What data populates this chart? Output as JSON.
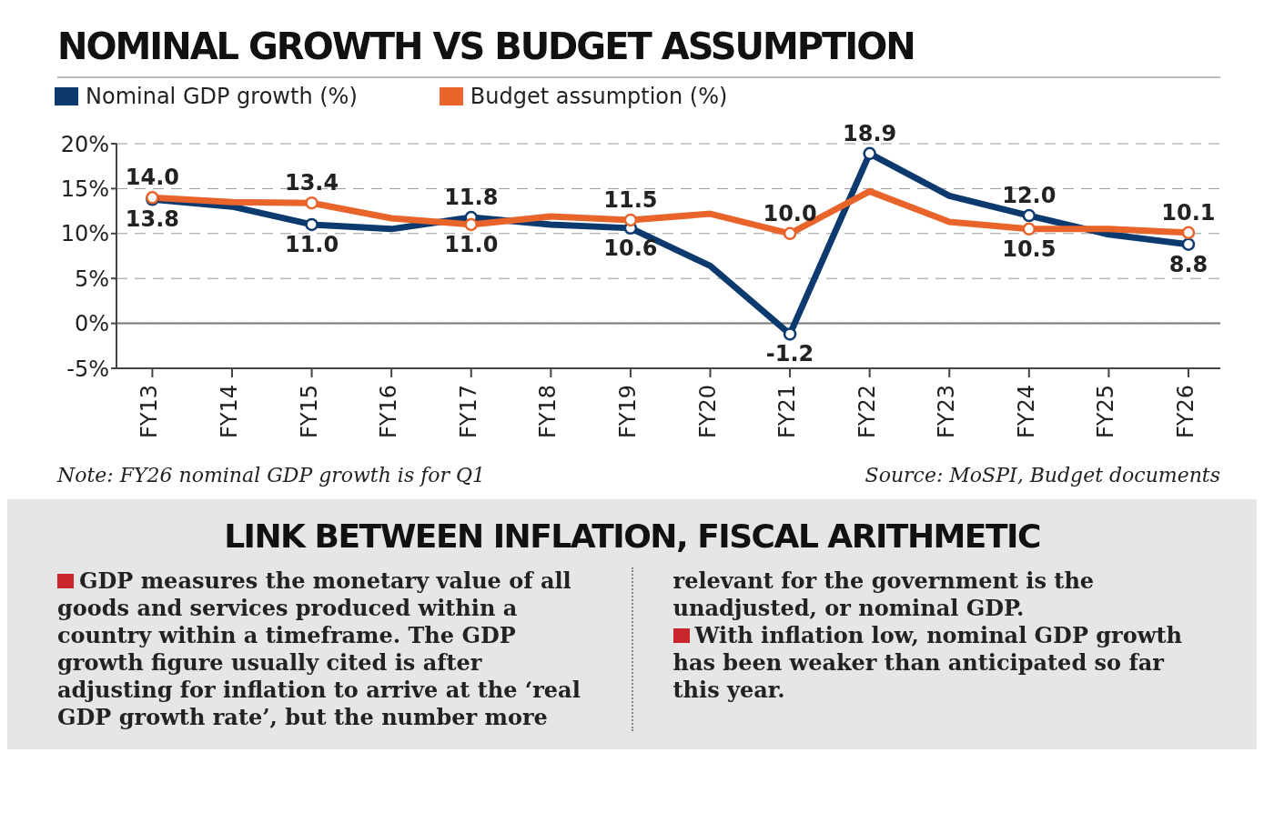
{
  "chart_data": {
    "type": "line",
    "title": "NOMINAL GROWTH VS BUDGET ASSUMPTION",
    "categories": [
      "FY13",
      "FY14",
      "FY15",
      "FY16",
      "FY17",
      "FY18",
      "FY19",
      "FY20",
      "FY21",
      "FY22",
      "FY23",
      "FY24",
      "FY25",
      "FY26"
    ],
    "series": [
      {
        "name": "Nominal GDP growth (%)",
        "color": "#0d3a6e",
        "values": [
          13.8,
          13.0,
          11.0,
          10.5,
          11.8,
          11.0,
          10.6,
          6.4,
          -1.2,
          18.9,
          14.2,
          12.0,
          9.9,
          8.8
        ],
        "value_labels": [
          "13.8",
          null,
          "11.0",
          null,
          "11.8",
          null,
          "10.6",
          null,
          "-1.2",
          "18.9",
          null,
          "12.0",
          null,
          "8.8"
        ]
      },
      {
        "name": "Budget assumption (%)",
        "color": "#e8642a",
        "values": [
          14.0,
          13.5,
          13.4,
          11.7,
          11.0,
          11.9,
          11.5,
          12.2,
          10.0,
          14.7,
          11.3,
          10.5,
          10.5,
          10.1
        ],
        "value_labels": [
          "14.0",
          null,
          "13.4",
          null,
          "11.0",
          null,
          "11.5",
          null,
          "10.0",
          null,
          null,
          "10.5",
          null,
          "10.1"
        ]
      }
    ],
    "ylim": [
      -5,
      20
    ],
    "yticks": [
      {
        "value": -5,
        "label": "-5%"
      },
      {
        "value": 0,
        "label": "0%"
      },
      {
        "value": 5,
        "label": "5%"
      },
      {
        "value": 10,
        "label": "10%"
      },
      {
        "value": 15,
        "label": "15%"
      },
      {
        "value": 20,
        "label": "20%"
      }
    ],
    "grid": "y",
    "legend": "top left",
    "marker": "circle",
    "line_style": "solid",
    "annotations": [
      "Note: FY26 nominal GDP growth is for Q1",
      "Source: MoSPI, Budget documents",
      "LINK BETWEEN INFLATION, FISCAL ARITHMETIC",
      "GDP measures the monetary value of all goods and services produced within a country within a timeframe. The GDP growth figure usually cited is after adjusting for inflation to arrive at the ‘real GDP growth rate’, but the number more relevant for the government is the unadjusted, or nominal GDP.",
      "With inflation low, nominal GDP growth has been weaker than anticipated so far this year."
    ]
  }
}
